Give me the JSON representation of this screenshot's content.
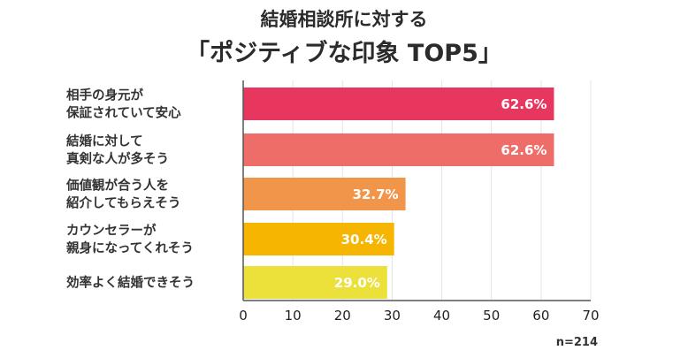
{
  "chart_data": {
    "type": "bar",
    "orientation": "horizontal",
    "title": "結婚相談所に対する",
    "subtitle": "「ポジティブな印象 TOP5」",
    "categories": [
      [
        "相手の身元が",
        "保証されていて安心"
      ],
      [
        "結婚に対して",
        "真剣な人が多そう"
      ],
      [
        "価値観が合う人を",
        "紹介してもらえそう"
      ],
      [
        "カウンセラーが",
        "親身になってくれそう"
      ],
      [
        "効率よく結婚できそう"
      ]
    ],
    "values": [
      62.6,
      62.6,
      32.7,
      30.4,
      29.0
    ],
    "value_labels": [
      "62.6%",
      "62.6%",
      "32.7%",
      "30.4%",
      "29.0%"
    ],
    "bar_colors": [
      "#e8375f",
      "#ee6d68",
      "#f0954a",
      "#f6b500",
      "#ece03a"
    ],
    "xlim": [
      0,
      70
    ],
    "xticks": [
      0,
      10,
      20,
      30,
      40,
      50,
      60,
      70
    ],
    "grid": true,
    "note": "n=214"
  }
}
